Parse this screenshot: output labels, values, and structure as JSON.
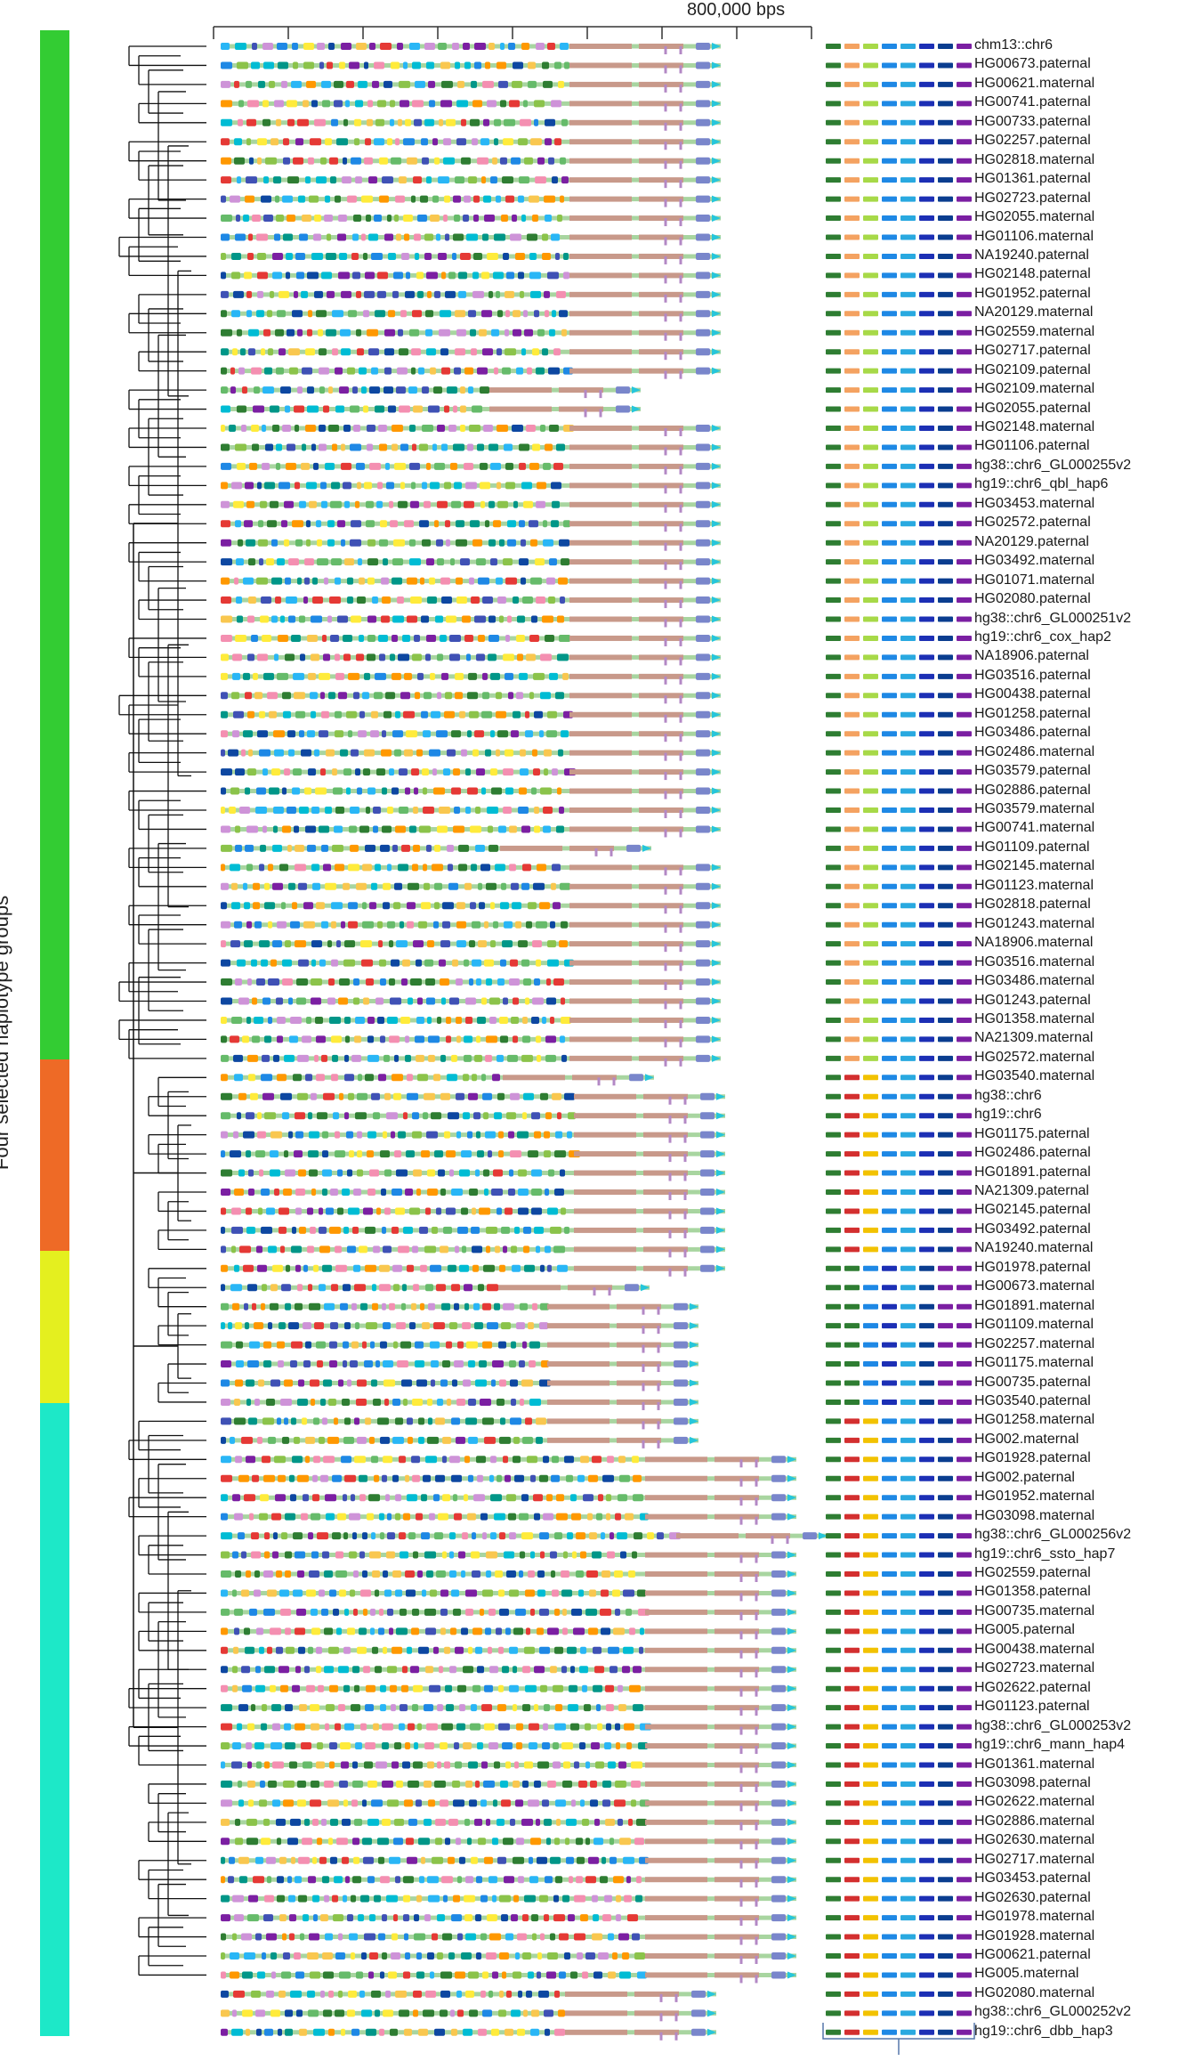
{
  "figure": {
    "scale_label": "800,000 bps",
    "group_axis_title": "Four selected haplotype groups"
  },
  "groups": [
    {
      "id": "group-1",
      "color": "#33cc33",
      "start_row": 0,
      "end_row": 53
    },
    {
      "id": "group-2",
      "color": "#ee6a26",
      "start_row": 54,
      "end_row": 63
    },
    {
      "id": "group-3",
      "color": "#e4ef1f",
      "start_row": 64,
      "end_row": 71
    },
    {
      "id": "group-4",
      "color": "#1de8c8",
      "start_row": 72,
      "end_row": 101
    }
  ],
  "colors": {
    "tree": "#111111",
    "backbone": "#a8d5a0",
    "long_segment": "#c8998a",
    "scale_axis": "#333333",
    "bracket": "#5577aa",
    "motif_palette": [
      "#2e7d32",
      "#66bb6a",
      "#f9c74f",
      "#1e88e5",
      "#29b6f6",
      "#0d47a1",
      "#7b1fa2",
      "#e53935",
      "#ff9800",
      "#8bc34a",
      "#00bcd4",
      "#ce93d8",
      "#f48fb1",
      "#ffeb3b",
      "#3f51b5",
      "#009688"
    ],
    "summary_palette": [
      "#2e7d32",
      "#f4a261",
      "#a7d948",
      "#1e88e5",
      "#29a9e0",
      "#1c2fb5",
      "#0a3d8f",
      "#7b1fa2",
      "#d32f2f",
      "#f2c200"
    ]
  },
  "haplotypes": [
    "chm13::chr6",
    "HG00673.paternal",
    "HG00621.maternal",
    "HG00741.paternal",
    "HG00733.paternal",
    "HG02257.paternal",
    "HG02818.maternal",
    "HG01361.paternal",
    "HG02723.paternal",
    "HG02055.maternal",
    "HG01106.maternal",
    "NA19240.paternal",
    "HG02148.paternal",
    "HG01952.paternal",
    "NA20129.maternal",
    "HG02559.maternal",
    "HG02717.paternal",
    "HG02109.paternal",
    "HG02109.maternal",
    "HG02055.paternal",
    "HG02148.maternal",
    "HG01106.paternal",
    "hg38::chr6_GL000255v2",
    "hg19::chr6_qbl_hap6",
    "HG03453.maternal",
    "HG02572.paternal",
    "NA20129.paternal",
    "HG03492.maternal",
    "HG01071.maternal",
    "HG02080.paternal",
    "hg38::chr6_GL000251v2",
    "hg19::chr6_cox_hap2",
    "NA18906.paternal",
    "HG03516.paternal",
    "HG00438.paternal",
    "HG01258.paternal",
    "HG03486.paternal",
    "HG02486.maternal",
    "HG03579.paternal",
    "HG02886.paternal",
    "HG03579.maternal",
    "HG00741.maternal",
    "HG01109.paternal",
    "HG02145.maternal",
    "HG01123.maternal",
    "HG02818.paternal",
    "HG01243.maternal",
    "NA18906.maternal",
    "HG03516.maternal",
    "HG03486.maternal",
    "HG01243.paternal",
    "HG01358.maternal",
    "NA21309.maternal",
    "HG02572.maternal",
    "HG03540.maternal",
    "hg38::chr6",
    "hg19::chr6",
    "HG01175.paternal",
    "HG02486.paternal",
    "HG01891.paternal",
    "NA21309.paternal",
    "HG02145.paternal",
    "HG03492.paternal",
    "NA19240.maternal",
    "HG01978.paternal",
    "HG00673.maternal",
    "HG01891.maternal",
    "HG01109.maternal",
    "HG02257.maternal",
    "HG01175.maternal",
    "HG00735.paternal",
    "HG03540.paternal",
    "HG01258.maternal",
    "HG002.maternal",
    "HG01928.paternal",
    "HG002.paternal",
    "HG01952.maternal",
    "HG03098.maternal",
    "hg38::chr6_GL000256v2",
    "hg19::chr6_ssto_hap7",
    "HG02559.paternal",
    "HG01358.paternal",
    "HG00735.maternal",
    "HG005.paternal",
    "HG00438.maternal",
    "HG02723.maternal",
    "HG02622.paternal",
    "HG01123.paternal",
    "hg38::chr6_GL000253v2",
    "hg19::chr6_mann_hap4",
    "HG01361.maternal",
    "HG03098.paternal",
    "HG02622.maternal",
    "HG02886.maternal",
    "HG02630.maternal",
    "HG02717.maternal",
    "HG03453.paternal",
    "HG02630.paternal",
    "HG01978.maternal",
    "HG01928.maternal",
    "HG00621.paternal",
    "HG005.maternal",
    "HG02080.maternal",
    "hg38::chr6_GL000252v2",
    "hg19::chr6_dbb_hap3"
  ]
}
